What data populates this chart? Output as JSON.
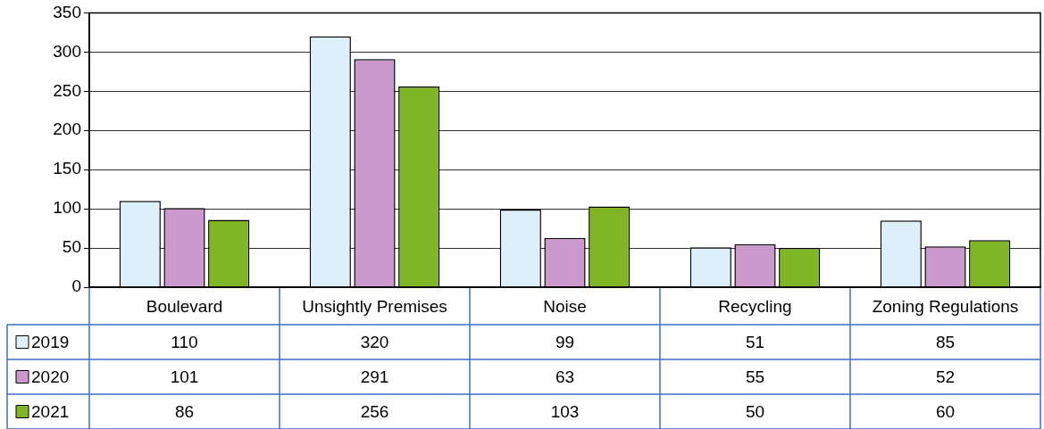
{
  "chart_data": {
    "type": "bar",
    "categories": [
      "Boulevard",
      "Unsightly Premises",
      "Noise",
      "Recycling",
      "Zoning Regulations"
    ],
    "series": [
      {
        "name": "2019",
        "color": "#ddf0fa",
        "values": [
          110,
          320,
          99,
          51,
          85
        ]
      },
      {
        "name": "2020",
        "color": "#cc99cc",
        "values": [
          101,
          291,
          63,
          55,
          52
        ]
      },
      {
        "name": "2021",
        "color": "#80b526",
        "values": [
          86,
          256,
          103,
          50,
          60
        ]
      }
    ],
    "ylim": [
      0,
      350
    ],
    "yticks": [
      0,
      50,
      100,
      150,
      200,
      250,
      300,
      350
    ],
    "grid": "y",
    "legend": "bottom",
    "data_labels": true
  }
}
